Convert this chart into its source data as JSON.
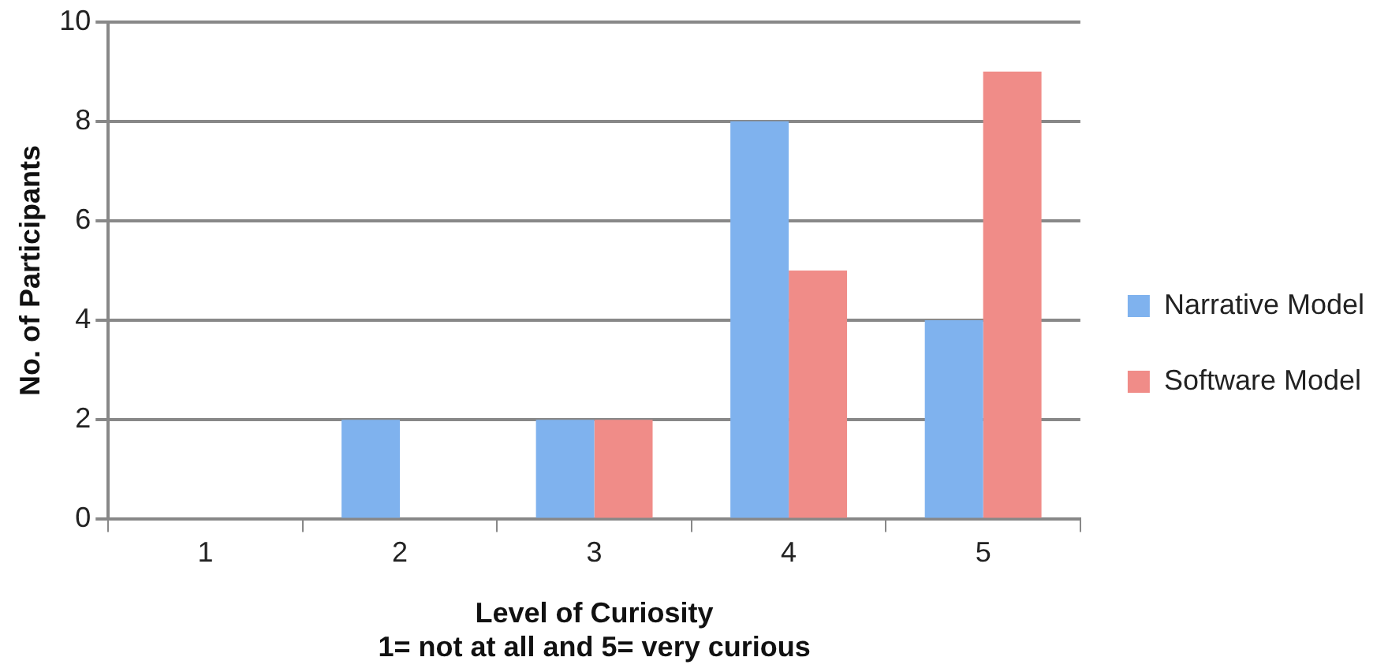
{
  "chart_data": {
    "type": "bar",
    "xlabel": "Level of Curiosity\n1= not at all and 5= very curious",
    "ylabel": "No. of Participants",
    "categories": [
      "1",
      "2",
      "3",
      "4",
      "5"
    ],
    "series": [
      {
        "name": "Narrative Model",
        "color": "#7fb2ee",
        "values": [
          0,
          2,
          2,
          8,
          4
        ]
      },
      {
        "name": "Software Model",
        "color": "#f08c88",
        "values": [
          0,
          0,
          2,
          5,
          9
        ]
      }
    ],
    "ylim": [
      0,
      10
    ],
    "yticks": [
      0,
      2,
      4,
      6,
      8,
      10
    ],
    "grid": "y",
    "legend": "right"
  }
}
